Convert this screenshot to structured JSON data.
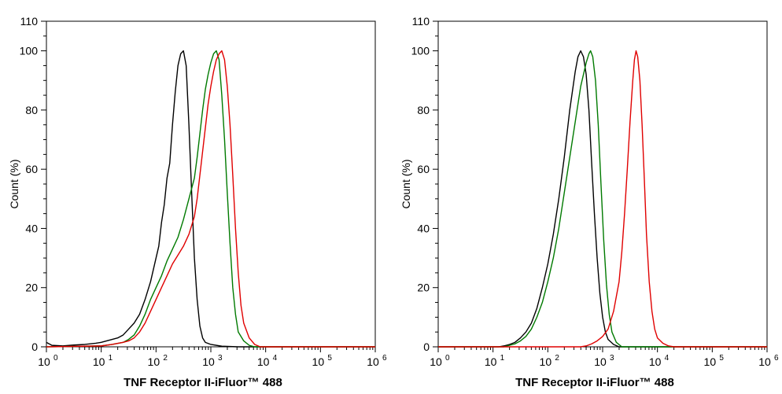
{
  "chart_data": [
    {
      "type": "line",
      "panel": "left",
      "title": "",
      "xlabel": "TNF Receptor II-iFluor™ 488",
      "ylabel": "Count  (%)",
      "xscale": "log",
      "xlim": [
        0,
        6
      ],
      "ylim": [
        0,
        110
      ],
      "x_ticks": [
        {
          "base": "10",
          "exp": "0"
        },
        {
          "base": "10",
          "exp": "1"
        },
        {
          "base": "10",
          "exp": "2"
        },
        {
          "base": "10",
          "exp": "3"
        },
        {
          "base": "10",
          "exp": "4"
        },
        {
          "base": "10",
          "exp": "5"
        },
        {
          "base": "10",
          "exp": "6"
        }
      ],
      "y_ticks": [
        "0",
        "20",
        "40",
        "60",
        "80",
        "100",
        "110"
      ],
      "grid": false,
      "series": [
        {
          "name": "black",
          "color": "#000000",
          "points": [
            [
              0.0,
              1.5
            ],
            [
              0.1,
              0.5
            ],
            [
              0.3,
              0.3
            ],
            [
              0.5,
              0.6
            ],
            [
              0.7,
              0.8
            ],
            [
              0.9,
              1.2
            ],
            [
              1.0,
              1.5
            ],
            [
              1.1,
              2
            ],
            [
              1.2,
              2.5
            ],
            [
              1.3,
              3
            ],
            [
              1.4,
              4
            ],
            [
              1.5,
              6
            ],
            [
              1.6,
              8
            ],
            [
              1.7,
              11
            ],
            [
              1.8,
              16
            ],
            [
              1.9,
              22
            ],
            [
              2.0,
              30
            ],
            [
              2.05,
              34
            ],
            [
              2.1,
              42
            ],
            [
              2.15,
              48
            ],
            [
              2.2,
              57
            ],
            [
              2.25,
              62
            ],
            [
              2.3,
              75
            ],
            [
              2.35,
              86
            ],
            [
              2.4,
              95
            ],
            [
              2.45,
              99
            ],
            [
              2.5,
              100
            ],
            [
              2.55,
              95
            ],
            [
              2.6,
              75
            ],
            [
              2.65,
              52
            ],
            [
              2.7,
              30
            ],
            [
              2.75,
              16
            ],
            [
              2.8,
              7
            ],
            [
              2.85,
              3
            ],
            [
              2.9,
              1.5
            ],
            [
              3.0,
              0.8
            ],
            [
              3.2,
              0.2
            ],
            [
              3.5,
              0
            ],
            [
              6.0,
              0
            ]
          ]
        },
        {
          "name": "green",
          "color": "#007a00",
          "points": [
            [
              0.0,
              0
            ],
            [
              1.0,
              0.3
            ],
            [
              1.2,
              0.8
            ],
            [
              1.4,
              1.5
            ],
            [
              1.5,
              2.5
            ],
            [
              1.6,
              4
            ],
            [
              1.7,
              7
            ],
            [
              1.8,
              11
            ],
            [
              1.9,
              16
            ],
            [
              2.0,
              20
            ],
            [
              2.1,
              24
            ],
            [
              2.2,
              29
            ],
            [
              2.3,
              33
            ],
            [
              2.4,
              37
            ],
            [
              2.5,
              43
            ],
            [
              2.6,
              50
            ],
            [
              2.7,
              57
            ],
            [
              2.75,
              64
            ],
            [
              2.8,
              72
            ],
            [
              2.85,
              80
            ],
            [
              2.9,
              87
            ],
            [
              2.95,
              92
            ],
            [
              3.0,
              96
            ],
            [
              3.05,
              99
            ],
            [
              3.1,
              100
            ],
            [
              3.15,
              97
            ],
            [
              3.2,
              85
            ],
            [
              3.25,
              70
            ],
            [
              3.3,
              52
            ],
            [
              3.35,
              35
            ],
            [
              3.4,
              20
            ],
            [
              3.45,
              11
            ],
            [
              3.5,
              5
            ],
            [
              3.6,
              2
            ],
            [
              3.7,
              0.5
            ],
            [
              3.8,
              0
            ],
            [
              6.0,
              0
            ]
          ]
        },
        {
          "name": "red",
          "color": "#e00000",
          "points": [
            [
              0.0,
              0
            ],
            [
              1.0,
              0.3
            ],
            [
              1.2,
              0.8
            ],
            [
              1.4,
              1.5
            ],
            [
              1.5,
              2
            ],
            [
              1.6,
              3
            ],
            [
              1.7,
              5
            ],
            [
              1.8,
              8
            ],
            [
              1.9,
              12
            ],
            [
              2.0,
              16
            ],
            [
              2.1,
              20
            ],
            [
              2.2,
              24
            ],
            [
              2.3,
              28
            ],
            [
              2.4,
              31
            ],
            [
              2.5,
              34
            ],
            [
              2.6,
              38
            ],
            [
              2.7,
              44
            ],
            [
              2.75,
              50
            ],
            [
              2.8,
              58
            ],
            [
              2.85,
              66
            ],
            [
              2.9,
              74
            ],
            [
              2.95,
              82
            ],
            [
              3.0,
              88
            ],
            [
              3.05,
              93
            ],
            [
              3.1,
              97
            ],
            [
              3.15,
              99
            ],
            [
              3.2,
              100
            ],
            [
              3.25,
              97
            ],
            [
              3.3,
              88
            ],
            [
              3.35,
              75
            ],
            [
              3.4,
              58
            ],
            [
              3.45,
              40
            ],
            [
              3.5,
              25
            ],
            [
              3.55,
              14
            ],
            [
              3.6,
              8
            ],
            [
              3.7,
              3
            ],
            [
              3.8,
              0.8
            ],
            [
              3.9,
              0
            ],
            [
              6.0,
              0
            ]
          ]
        }
      ]
    },
    {
      "type": "line",
      "panel": "right",
      "title": "",
      "xlabel": "TNF Receptor II-iFluor™ 488",
      "ylabel": "Count  (%)",
      "xscale": "log",
      "xlim": [
        0,
        6
      ],
      "ylim": [
        0,
        110
      ],
      "x_ticks": [
        {
          "base": "10",
          "exp": "0"
        },
        {
          "base": "10",
          "exp": "1"
        },
        {
          "base": "10",
          "exp": "2"
        },
        {
          "base": "10",
          "exp": "3"
        },
        {
          "base": "10",
          "exp": "4"
        },
        {
          "base": "10",
          "exp": "5"
        },
        {
          "base": "10",
          "exp": "6"
        }
      ],
      "y_ticks": [
        "0",
        "20",
        "40",
        "60",
        "80",
        "100",
        "110"
      ],
      "grid": false,
      "series": [
        {
          "name": "black",
          "color": "#000000",
          "points": [
            [
              0.0,
              0
            ],
            [
              1.1,
              0
            ],
            [
              1.2,
              0.3
            ],
            [
              1.3,
              0.8
            ],
            [
              1.4,
              1.5
            ],
            [
              1.5,
              3
            ],
            [
              1.6,
              5
            ],
            [
              1.7,
              8
            ],
            [
              1.8,
              13
            ],
            [
              1.9,
              20
            ],
            [
              2.0,
              28
            ],
            [
              2.1,
              38
            ],
            [
              2.2,
              50
            ],
            [
              2.3,
              64
            ],
            [
              2.4,
              80
            ],
            [
              2.5,
              93
            ],
            [
              2.55,
              98
            ],
            [
              2.6,
              100
            ],
            [
              2.65,
              98
            ],
            [
              2.7,
              92
            ],
            [
              2.75,
              80
            ],
            [
              2.8,
              62
            ],
            [
              2.85,
              45
            ],
            [
              2.9,
              30
            ],
            [
              2.95,
              18
            ],
            [
              3.0,
              10
            ],
            [
              3.05,
              5
            ],
            [
              3.1,
              2.5
            ],
            [
              3.2,
              0.8
            ],
            [
              3.3,
              0
            ],
            [
              6.0,
              0
            ]
          ]
        },
        {
          "name": "green",
          "color": "#007a00",
          "points": [
            [
              0.0,
              0
            ],
            [
              1.2,
              0
            ],
            [
              1.3,
              0.5
            ],
            [
              1.4,
              1
            ],
            [
              1.5,
              2
            ],
            [
              1.6,
              3.5
            ],
            [
              1.7,
              6
            ],
            [
              1.8,
              10
            ],
            [
              1.9,
              15
            ],
            [
              2.0,
              22
            ],
            [
              2.1,
              30
            ],
            [
              2.2,
              40
            ],
            [
              2.3,
              52
            ],
            [
              2.4,
              64
            ],
            [
              2.5,
              76
            ],
            [
              2.6,
              88
            ],
            [
              2.7,
              96
            ],
            [
              2.75,
              99
            ],
            [
              2.78,
              100
            ],
            [
              2.82,
              98
            ],
            [
              2.87,
              90
            ],
            [
              2.92,
              75
            ],
            [
              2.97,
              55
            ],
            [
              3.02,
              36
            ],
            [
              3.07,
              21
            ],
            [
              3.12,
              11
            ],
            [
              3.17,
              5
            ],
            [
              3.25,
              1.5
            ],
            [
              3.35,
              0
            ],
            [
              6.0,
              0
            ]
          ]
        },
        {
          "name": "red",
          "color": "#e00000",
          "points": [
            [
              0.0,
              0
            ],
            [
              2.6,
              0
            ],
            [
              2.7,
              0.3
            ],
            [
              2.8,
              1
            ],
            [
              2.9,
              2
            ],
            [
              3.0,
              3.5
            ],
            [
              3.1,
              6
            ],
            [
              3.2,
              12
            ],
            [
              3.3,
              22
            ],
            [
              3.35,
              32
            ],
            [
              3.4,
              45
            ],
            [
              3.45,
              60
            ],
            [
              3.5,
              76
            ],
            [
              3.55,
              90
            ],
            [
              3.58,
              97
            ],
            [
              3.61,
              100
            ],
            [
              3.64,
              98
            ],
            [
              3.68,
              90
            ],
            [
              3.72,
              75
            ],
            [
              3.76,
              57
            ],
            [
              3.8,
              38
            ],
            [
              3.85,
              22
            ],
            [
              3.9,
              12
            ],
            [
              3.95,
              6
            ],
            [
              4.0,
              3
            ],
            [
              4.1,
              1.2
            ],
            [
              4.2,
              0.3
            ],
            [
              4.3,
              0
            ],
            [
              6.0,
              0
            ]
          ]
        }
      ]
    }
  ]
}
